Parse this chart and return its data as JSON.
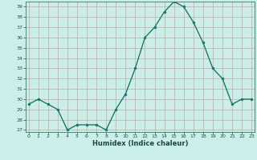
{
  "x": [
    0,
    1,
    2,
    3,
    4,
    5,
    6,
    7,
    8,
    9,
    10,
    11,
    12,
    13,
    14,
    15,
    16,
    17,
    18,
    19,
    20,
    21,
    22,
    23
  ],
  "y": [
    29.5,
    30.0,
    29.5,
    29.0,
    27.0,
    27.5,
    27.5,
    27.5,
    27.0,
    29.0,
    30.5,
    33.0,
    36.0,
    37.0,
    38.5,
    39.5,
    39.0,
    37.5,
    35.5,
    33.0,
    32.0,
    29.5,
    30.0,
    30.0
  ],
  "xlim": [
    -0.3,
    23.3
  ],
  "ylim": [
    27,
    39
  ],
  "yticks": [
    27,
    28,
    29,
    30,
    31,
    32,
    33,
    34,
    35,
    36,
    37,
    38,
    39
  ],
  "xticks": [
    0,
    1,
    2,
    3,
    4,
    5,
    6,
    7,
    8,
    9,
    10,
    11,
    12,
    13,
    14,
    15,
    16,
    17,
    18,
    19,
    20,
    21,
    22,
    23
  ],
  "xlabel": "Humidex (Indice chaleur)",
  "line_color": "#1a7a6e",
  "marker_color": "#1a7a6e",
  "bg_color": "#cceee8",
  "grid_color": "#c8a8a8",
  "axes_color": "#3a7a70",
  "tick_color": "#1a5a50",
  "label_color": "#1a4a44"
}
